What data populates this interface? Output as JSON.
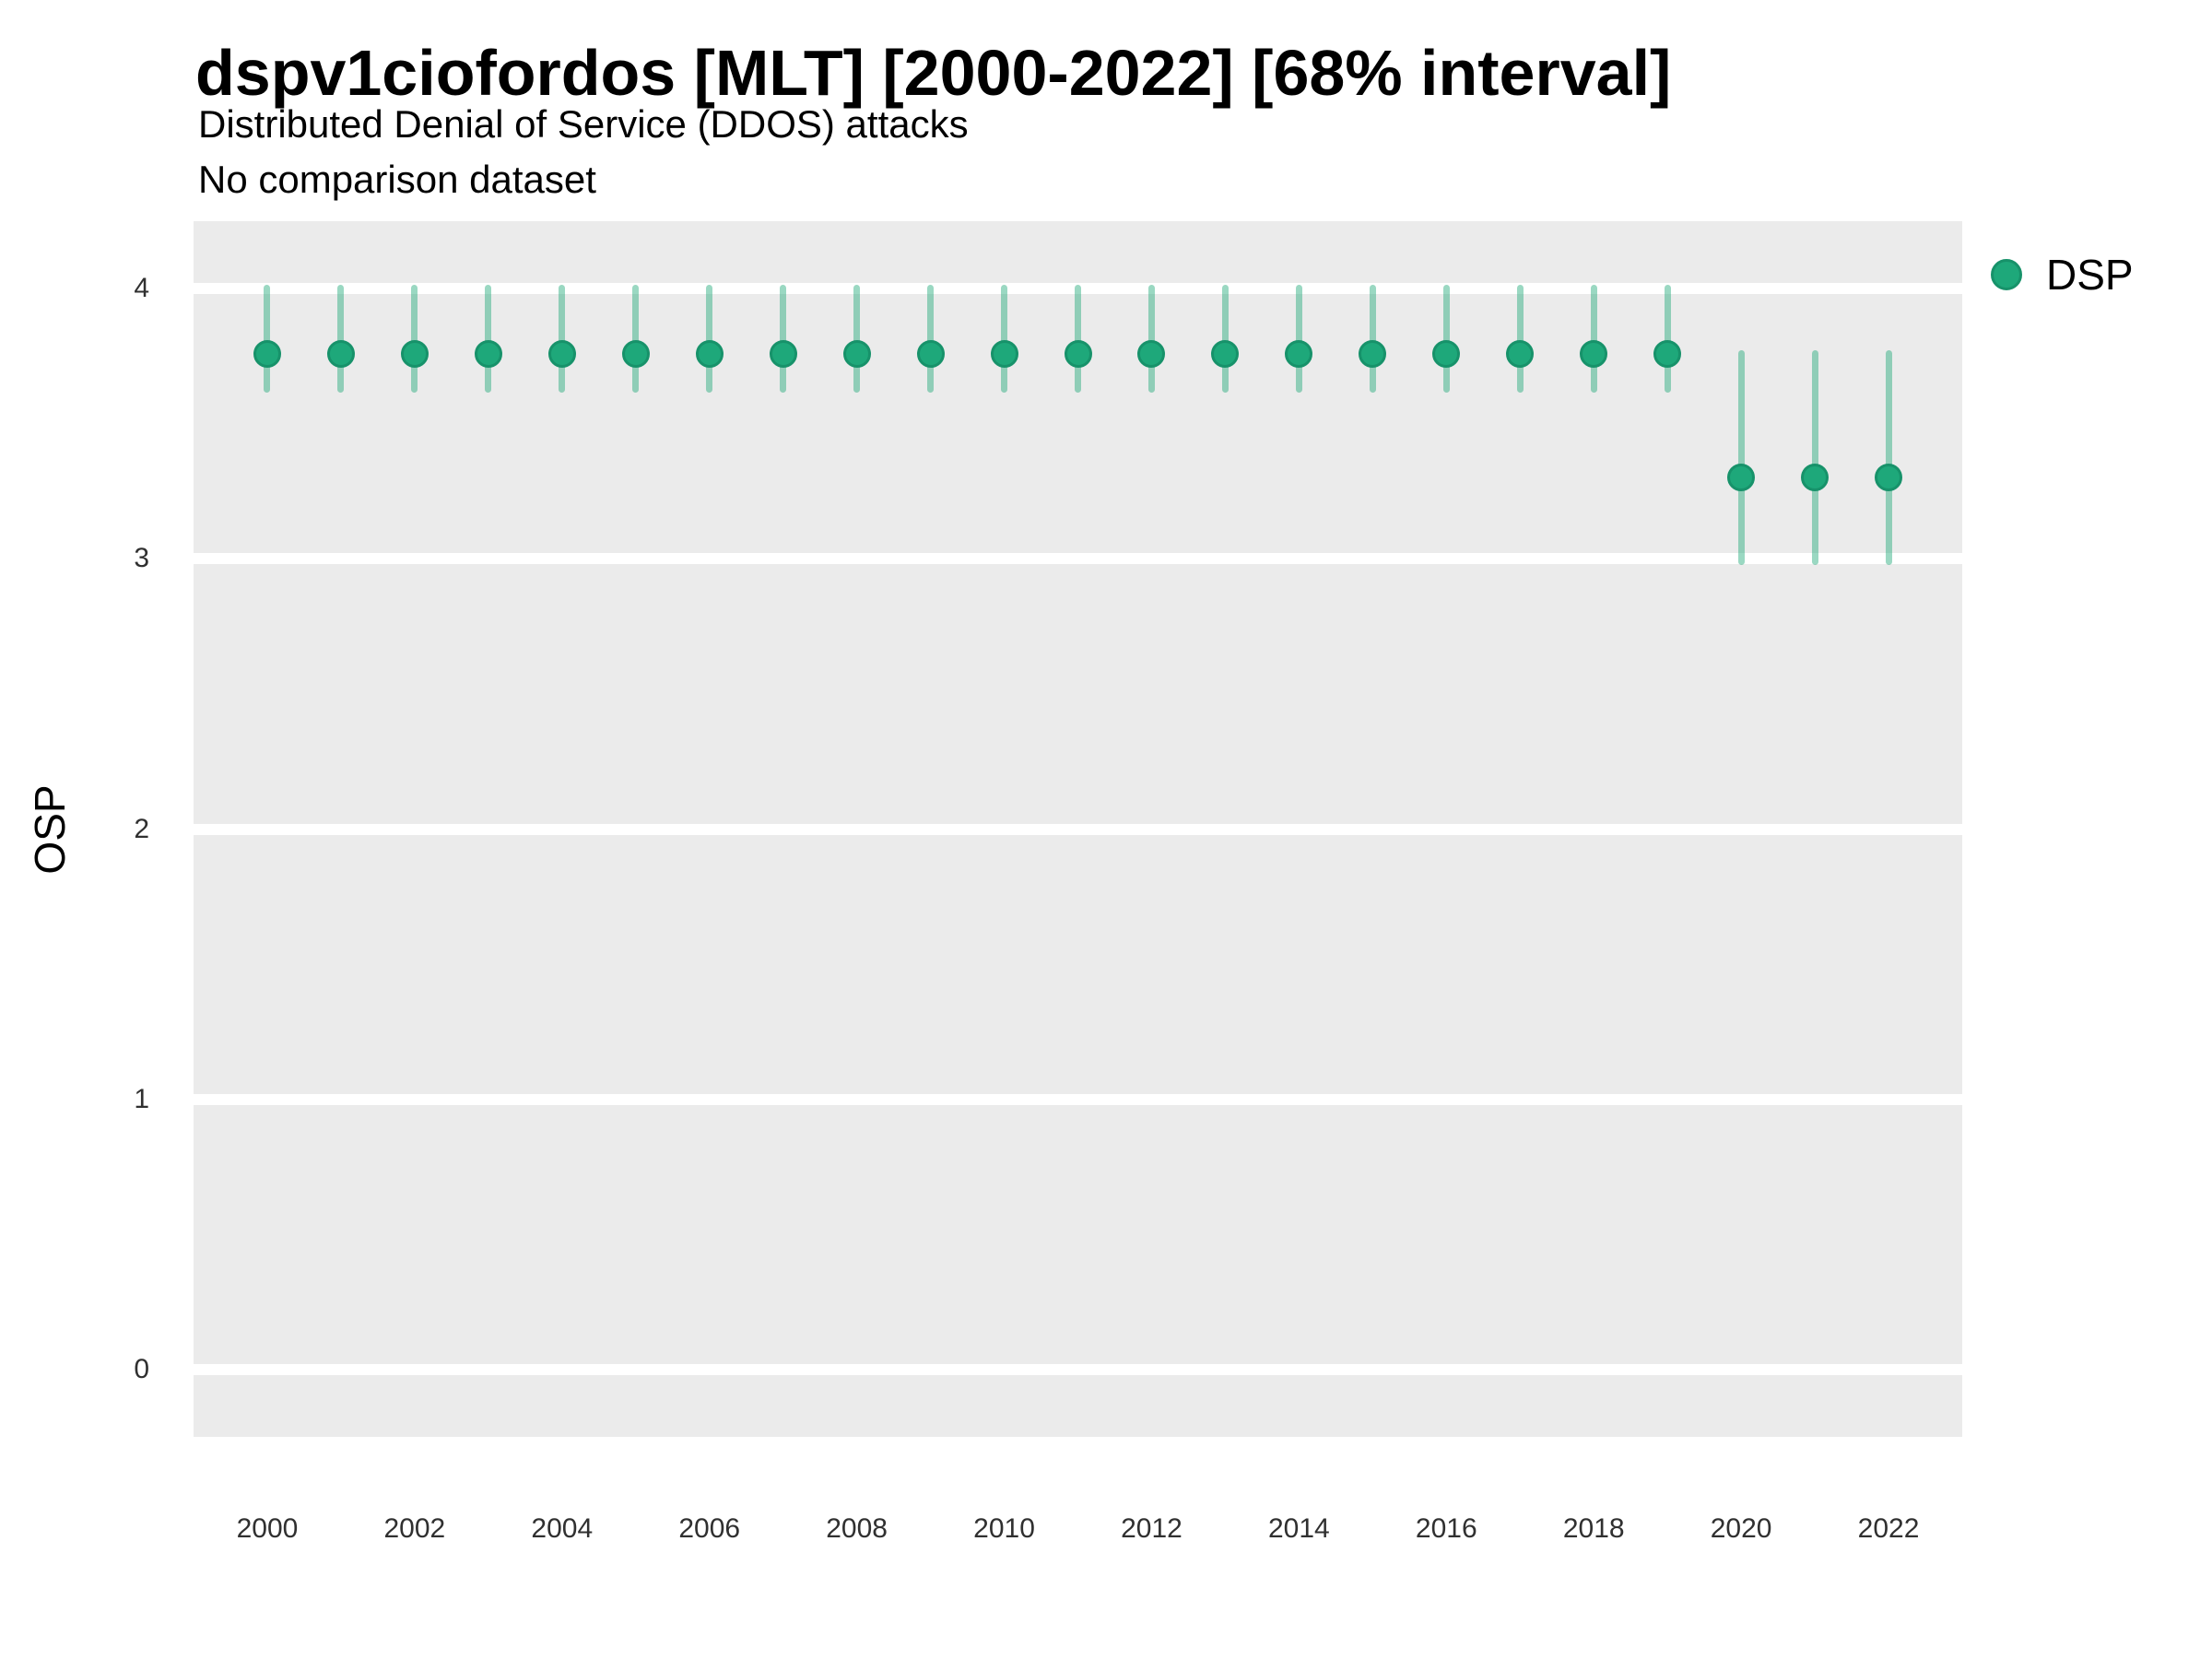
{
  "header": {
    "title": "dspv1ciofordos [MLT] [2000-2022] [68% interval]",
    "subtitle": "Distributed Denial of Service (DDOS) attacks",
    "subtitle2": "No comparison dataset"
  },
  "legend": {
    "position": "right",
    "items": [
      {
        "label": "DSP",
        "color": "#1ea87a"
      }
    ]
  },
  "axes": {
    "y_label": "OSP",
    "x_label": "",
    "y_ticks": [
      0,
      1,
      2,
      3,
      4
    ],
    "x_ticks": [
      2000,
      2002,
      2004,
      2006,
      2008,
      2010,
      2012,
      2014,
      2016,
      2018,
      2020,
      2022
    ]
  },
  "colors": {
    "panel_background": "#ebebeb",
    "gridline": "#ffffff",
    "point_fill": "#1ea87a",
    "point_stroke": "#17926a",
    "interval_bar": "rgba(30,168,120,0.45)",
    "tick_text": "#303030"
  },
  "chart_data": {
    "type": "scatter",
    "title": "dspv1ciofordos [MLT] [2000-2022] [68% interval]",
    "subtitle": "Distributed Denial of Service (DDOS) attacks",
    "note": "No comparison dataset",
    "xlabel": "",
    "ylabel": "OSP",
    "xlim": [
      1999,
      2023
    ],
    "ylim": [
      -0.25,
      4.25
    ],
    "grid": "horizontal-major-only",
    "legend_position": "right",
    "interval_level": "68%",
    "marker": "point-with-vertical-interval",
    "series": [
      {
        "name": "DSP",
        "color": "#1ea87a",
        "points": [
          {
            "x": 2000,
            "y": 3.76,
            "lo": 3.63,
            "hi": 4.0
          },
          {
            "x": 2001,
            "y": 3.76,
            "lo": 3.63,
            "hi": 4.0
          },
          {
            "x": 2002,
            "y": 3.76,
            "lo": 3.63,
            "hi": 4.0
          },
          {
            "x": 2003,
            "y": 3.76,
            "lo": 3.63,
            "hi": 4.0
          },
          {
            "x": 2004,
            "y": 3.76,
            "lo": 3.63,
            "hi": 4.0
          },
          {
            "x": 2005,
            "y": 3.76,
            "lo": 3.63,
            "hi": 4.0
          },
          {
            "x": 2006,
            "y": 3.76,
            "lo": 3.63,
            "hi": 4.0
          },
          {
            "x": 2007,
            "y": 3.76,
            "lo": 3.63,
            "hi": 4.0
          },
          {
            "x": 2008,
            "y": 3.76,
            "lo": 3.63,
            "hi": 4.0
          },
          {
            "x": 2009,
            "y": 3.76,
            "lo": 3.63,
            "hi": 4.0
          },
          {
            "x": 2010,
            "y": 3.76,
            "lo": 3.63,
            "hi": 4.0
          },
          {
            "x": 2011,
            "y": 3.76,
            "lo": 3.63,
            "hi": 4.0
          },
          {
            "x": 2012,
            "y": 3.76,
            "lo": 3.63,
            "hi": 4.0
          },
          {
            "x": 2013,
            "y": 3.76,
            "lo": 3.63,
            "hi": 4.0
          },
          {
            "x": 2014,
            "y": 3.76,
            "lo": 3.63,
            "hi": 4.0
          },
          {
            "x": 2015,
            "y": 3.76,
            "lo": 3.63,
            "hi": 4.0
          },
          {
            "x": 2016,
            "y": 3.76,
            "lo": 3.63,
            "hi": 4.0
          },
          {
            "x": 2017,
            "y": 3.76,
            "lo": 3.63,
            "hi": 4.0
          },
          {
            "x": 2018,
            "y": 3.76,
            "lo": 3.63,
            "hi": 4.0
          },
          {
            "x": 2019,
            "y": 3.76,
            "lo": 3.63,
            "hi": 4.0
          },
          {
            "x": 2020,
            "y": 3.3,
            "lo": 2.99,
            "hi": 3.76
          },
          {
            "x": 2021,
            "y": 3.3,
            "lo": 2.99,
            "hi": 3.76
          },
          {
            "x": 2022,
            "y": 3.3,
            "lo": 2.99,
            "hi": 3.76
          }
        ]
      }
    ]
  }
}
